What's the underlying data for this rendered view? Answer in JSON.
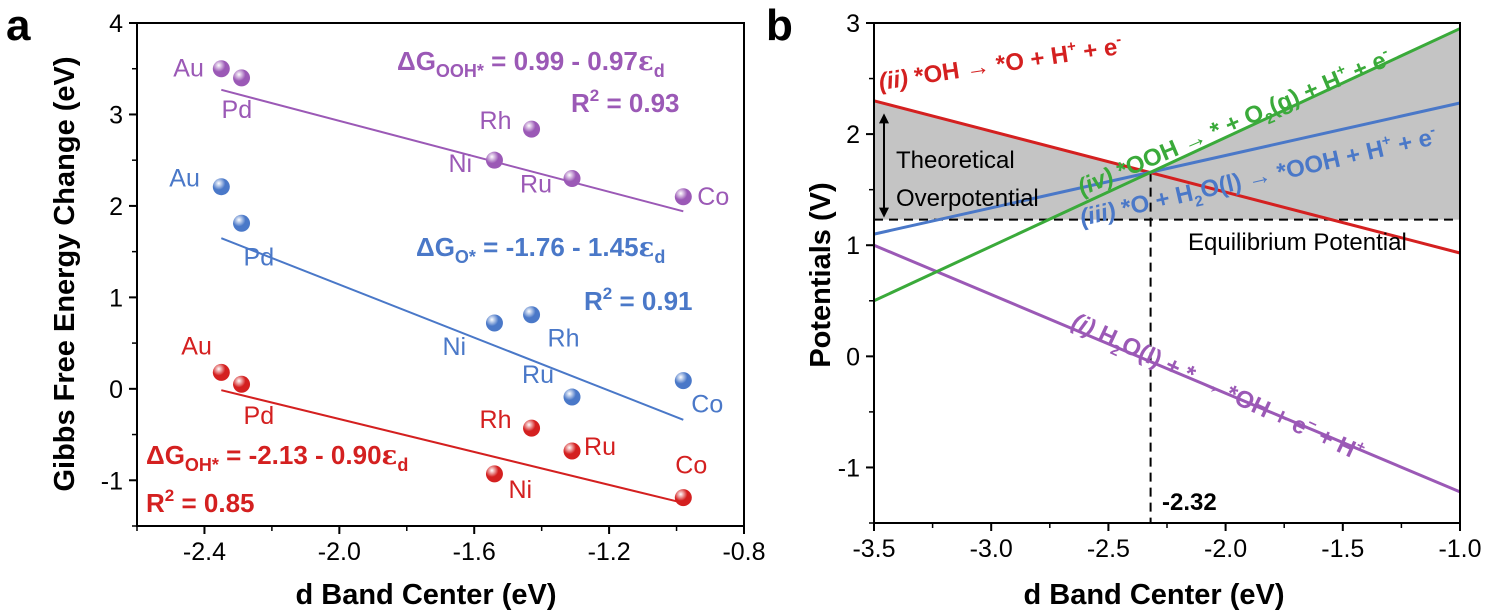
{
  "colors": {
    "purple": "#9b59b6",
    "blue": "#4a78c8",
    "red": "#d42020",
    "green": "#3aaa3a",
    "shade": "#c4c4c4"
  },
  "chart_data": [
    {
      "type": "scatter",
      "panel": "a",
      "xlabel": "d Band Center (eV)",
      "ylabel": "Gibbs Free Energy Change (eV)",
      "xlim": [
        -2.6,
        -0.8
      ],
      "ylim": [
        -1.5,
        4
      ],
      "xticks": [
        "-2.4",
        "-2.0",
        "-1.6",
        "-1.2",
        "-0.8"
      ],
      "yticks": [
        "-1",
        "0",
        "1",
        "2",
        "3",
        "4"
      ],
      "series": [
        {
          "name": "OOH*",
          "color": "purple",
          "points": [
            {
              "label": "Au",
              "x": -2.35,
              "y": 3.5
            },
            {
              "label": "Pd",
              "x": -2.29,
              "y": 3.4
            },
            {
              "label": "Rh",
              "x": -1.43,
              "y": 2.84
            },
            {
              "label": "Ni",
              "x": -1.54,
              "y": 2.5
            },
            {
              "label": "Ru",
              "x": -1.31,
              "y": 2.3
            },
            {
              "label": "Co",
              "x": -0.98,
              "y": 2.1
            }
          ],
          "fit": {
            "intercept": 0.99,
            "slope": -0.97
          },
          "equation_parts": [
            "ΔG",
            "OOH*",
            " = 0.99 - 0.97",
            "ε",
            "d"
          ],
          "r2_label": "R",
          "r2_sup": "2",
          "r2_value": " = 0.93"
        },
        {
          "name": "O*",
          "color": "blue",
          "points": [
            {
              "label": "Au",
              "x": -2.35,
              "y": 2.21
            },
            {
              "label": "Pd",
              "x": -2.29,
              "y": 1.81
            },
            {
              "label": "Ni",
              "x": -1.54,
              "y": 0.72
            },
            {
              "label": "Rh",
              "x": -1.43,
              "y": 0.81
            },
            {
              "label": "Ru",
              "x": -1.31,
              "y": -0.09
            },
            {
              "label": "Co",
              "x": -0.98,
              "y": 0.09
            }
          ],
          "fit": {
            "intercept": -1.76,
            "slope": -1.45
          },
          "equation_parts": [
            "ΔG",
            "O*",
            " = -1.76 - 1.45",
            "ε",
            "d"
          ],
          "r2_label": "R",
          "r2_sup": "2",
          "r2_value": " = 0.91"
        },
        {
          "name": "OH*",
          "color": "red",
          "points": [
            {
              "label": "Au",
              "x": -2.35,
              "y": 0.18
            },
            {
              "label": "Pd",
              "x": -2.29,
              "y": 0.05
            },
            {
              "label": "Rh",
              "x": -1.43,
              "y": -0.43
            },
            {
              "label": "Ru",
              "x": -1.31,
              "y": -0.68
            },
            {
              "label": "Ni",
              "x": -1.54,
              "y": -0.93
            },
            {
              "label": "Co",
              "x": -0.98,
              "y": -1.19
            }
          ],
          "fit": {
            "intercept": -2.13,
            "slope": -0.9
          },
          "equation_parts": [
            "ΔG",
            "OH*",
            " = -2.13 - 0.90",
            "ε",
            "d"
          ],
          "r2_label": "R",
          "r2_sup": "2",
          "r2_value": " = 0.85"
        }
      ]
    },
    {
      "type": "line",
      "panel": "b",
      "xlabel": "d Band Center (eV)",
      "ylabel": "Potentials (V)",
      "xlim": [
        -3.5,
        -1.0
      ],
      "ylim": [
        -1.5,
        3
      ],
      "xticks": [
        "-3.5",
        "-3.0",
        "-2.5",
        "-2.0",
        "-1.5",
        "-1.0"
      ],
      "yticks": [
        "-1",
        "0",
        "1",
        "2",
        "3"
      ],
      "equilibrium_potential": 1.23,
      "equilibrium_label": "Equilibrium Potential",
      "marked_x": -2.32,
      "marked_x_label": "-2.32",
      "overpotential_label_lines": [
        "Theoretical",
        "Overpotential"
      ],
      "series": [
        {
          "name": "(i)",
          "color": "purple",
          "x": [
            -3.5,
            -1.0
          ],
          "y": [
            1.0,
            -1.22
          ],
          "label_parts": [
            "(i)",
            " H",
            "2",
            "O(l) + * → *OH + e",
            "−",
            " + H",
            "+"
          ]
        },
        {
          "name": "(ii)",
          "color": "red",
          "x": [
            -3.5,
            -1.0
          ],
          "y": [
            2.3,
            0.93
          ],
          "label_parts": [
            "(ii)",
            " *OH → *O + H",
            "+",
            " + e",
            "-"
          ]
        },
        {
          "name": "(iii)",
          "color": "blue",
          "x": [
            -3.5,
            -1.0
          ],
          "y": [
            1.1,
            2.28
          ],
          "label_parts": [
            "(iii)",
            " *O + H",
            "2",
            "O(l) → *OOH + H",
            "+",
            " + e",
            "-"
          ]
        },
        {
          "name": "(iv)",
          "color": "green",
          "x": [
            -3.5,
            -1.0
          ],
          "y": [
            0.5,
            2.95
          ],
          "label_parts": [
            "(iv)",
            " *OOH → * + O",
            "2",
            "(g) + H",
            "+",
            " + e",
            "-"
          ]
        }
      ]
    }
  ]
}
